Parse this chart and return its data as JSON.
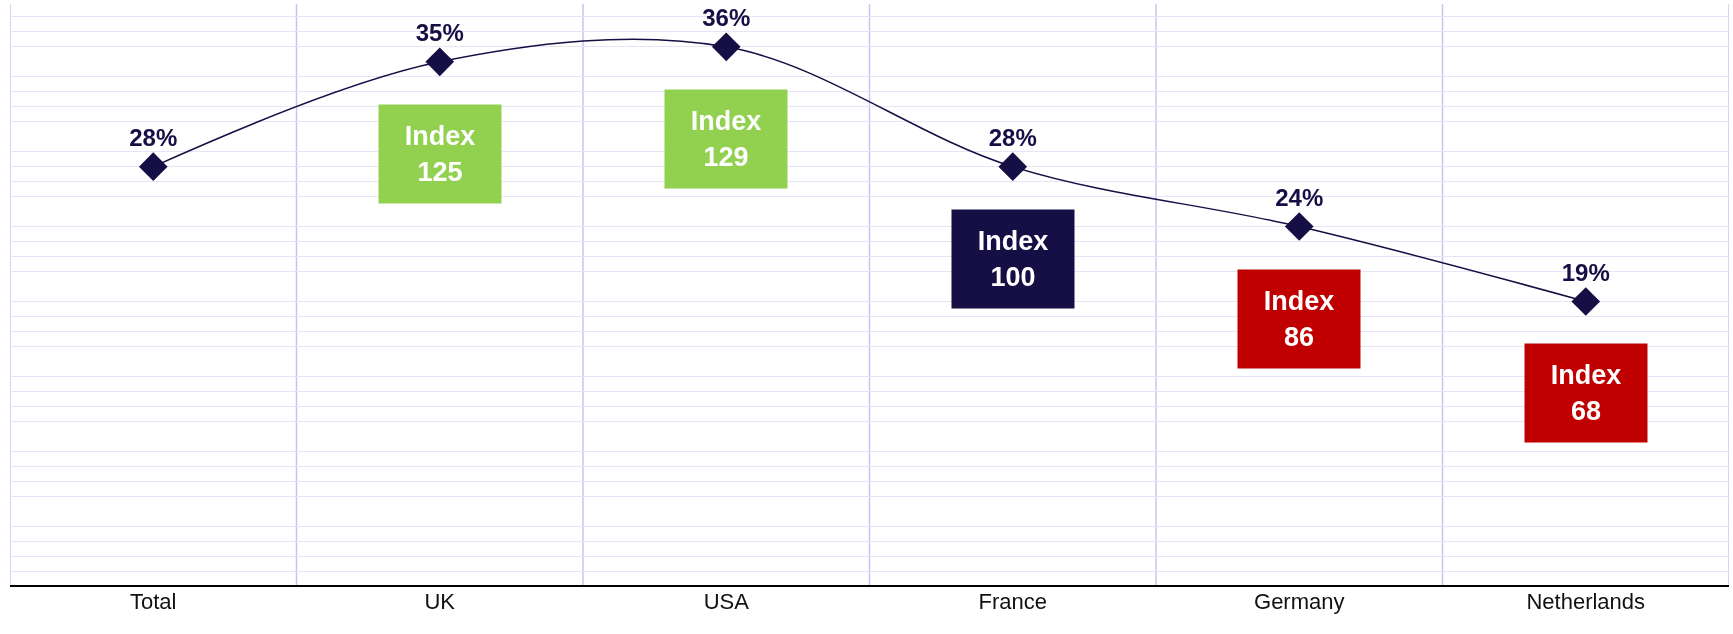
{
  "chart_data": {
    "type": "line",
    "categories": [
      "Total",
      "UK",
      "USA",
      "France",
      "Germany",
      "Netherlands"
    ],
    "series": [
      {
        "color": "#150f45",
        "values": [
          28,
          35,
          36,
          28,
          24,
          19
        ],
        "value_labels": [
          "28%",
          "35%",
          "36%",
          "28%",
          "24%",
          "19%"
        ]
      }
    ],
    "tick_labels": "x",
    "grid": true,
    "marker": "diamond",
    "line_style": "solid",
    "annotations": [
      "Index\n125",
      "Index\n129",
      "Index\n100",
      "Index\n86",
      "Index\n68"
    ],
    "colors": [
      "#92d050",
      "#92d050",
      "#150f45",
      "#c00000",
      "#c00000"
    ]
  }
}
